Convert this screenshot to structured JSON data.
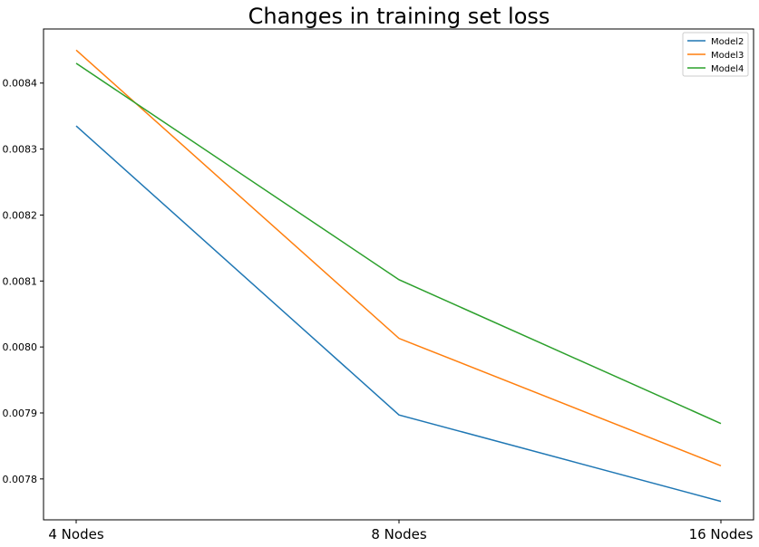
{
  "chart_data": {
    "type": "line",
    "title": "Changes in training set loss",
    "categories": [
      "4 Nodes",
      "8 Nodes",
      "16 Nodes"
    ],
    "series": [
      {
        "name": "Model2",
        "color": "#1f77b4",
        "values": [
          0.008335,
          0.007897,
          0.007766
        ]
      },
      {
        "name": "Model3",
        "color": "#ff7f0e",
        "values": [
          0.00845,
          0.008013,
          0.00782
        ]
      },
      {
        "name": "Model4",
        "color": "#2ca02c",
        "values": [
          0.00843,
          0.008102,
          0.007884
        ]
      }
    ],
    "yticks": [
      "0.0078",
      "0.0079",
      "0.0080",
      "0.0081",
      "0.0082",
      "0.0083",
      "0.0084"
    ],
    "ylim": [
      0.007738,
      0.008482
    ],
    "xlabel": "",
    "ylabel": "",
    "grid": false,
    "legend_position": "top-right"
  }
}
